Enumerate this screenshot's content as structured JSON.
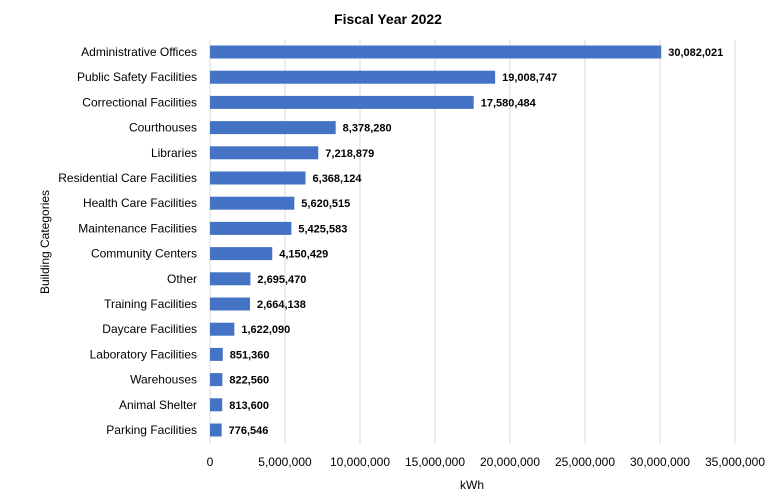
{
  "chart_data": {
    "type": "bar",
    "orientation": "horizontal",
    "title": "Fiscal Year 2022",
    "xlabel": "kWh",
    "ylabel": "Building Categories",
    "xlim": [
      0,
      35000000
    ],
    "xticks": [
      0,
      5000000,
      10000000,
      15000000,
      20000000,
      25000000,
      30000000,
      35000000
    ],
    "xtick_labels": [
      "0",
      "5,000,000",
      "10,000,000",
      "15,000,000",
      "20,000,000",
      "25,000,000",
      "30,000,000",
      "35,000,000"
    ],
    "grid": "vertical",
    "legend": "none",
    "bar_color": "#4472C4",
    "categories": [
      "Administrative Offices",
      "Public Safety Facilities",
      "Correctional Facilities",
      "Courthouses",
      "Libraries",
      "Residential Care Facilities",
      "Health Care Facilities",
      "Maintenance Facilities",
      "Community Centers",
      "Other",
      "Training Facilities",
      "Daycare Facilities",
      "Laboratory Facilities",
      "Warehouses",
      "Animal Shelter",
      "Parking Facilities"
    ],
    "values": [
      30082021,
      19008747,
      17580484,
      8378280,
      7218879,
      6368124,
      5620515,
      5425583,
      4150429,
      2695470,
      2664138,
      1622090,
      851360,
      822560,
      813600,
      776546
    ],
    "data_labels": [
      "30,082,021",
      "19,008,747",
      "17,580,484",
      "8,378,280",
      "7,218,879",
      "6,368,124",
      "5,620,515",
      "5,425,583",
      "4,150,429",
      "2,695,470",
      "2,664,138",
      "1,622,090",
      "851,360",
      "822,560",
      "813,600",
      "776,546"
    ]
  }
}
